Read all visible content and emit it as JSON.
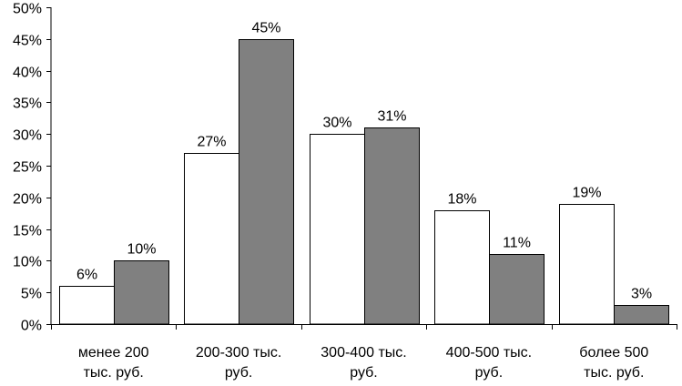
{
  "chart_data": {
    "type": "bar",
    "categories": [
      [
        "менее 200",
        "тыс. руб."
      ],
      [
        "200-300 тыс.",
        "руб."
      ],
      [
        "300-400 тыс.",
        "руб."
      ],
      [
        "400-500 тыс.",
        "руб."
      ],
      [
        "более 500",
        "тыс. руб."
      ]
    ],
    "series": [
      {
        "values": [
          6,
          27,
          30,
          18,
          19
        ],
        "value_labels": [
          "6%",
          "27%",
          "30%",
          "18%",
          "19%"
        ],
        "fill": "#ffffff"
      },
      {
        "values": [
          10,
          45,
          31,
          11,
          3
        ],
        "value_labels": [
          "10%",
          "45%",
          "31%",
          "11%",
          "3%"
        ],
        "fill": "#808080"
      }
    ],
    "y_ticks": [
      0,
      5,
      10,
      15,
      20,
      25,
      30,
      35,
      40,
      45,
      50
    ],
    "y_tick_labels": [
      "0%",
      "5%",
      "10%",
      "15%",
      "20%",
      "25%",
      "30%",
      "35%",
      "40%",
      "45%",
      "50%"
    ],
    "ylim": [
      0,
      50
    ],
    "grid": false,
    "legend": "none",
    "title": "",
    "xlabel": "",
    "ylabel": ""
  }
}
